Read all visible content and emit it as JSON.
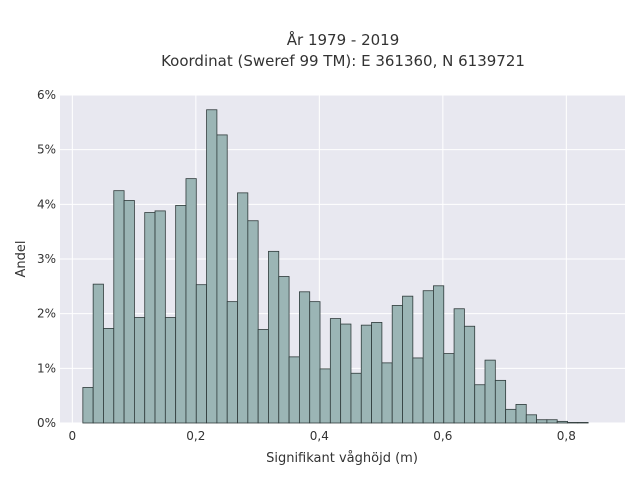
{
  "chart_data": {
    "type": "bar",
    "title_line1": "År 1979 - 2019",
    "title_line2": "Koordinat (Sweref 99 TM): E 361360, N 6139721",
    "xlabel": "Signifikant våghöjd (m)",
    "ylabel": "Andel",
    "xlim": [
      -0.02,
      0.895
    ],
    "ylim": [
      0,
      6
    ],
    "x_ticks": [
      0,
      0.2,
      0.4,
      0.6,
      0.8
    ],
    "x_tick_labels": [
      "0",
      "0,2",
      "0,4",
      "0,6",
      "0,8"
    ],
    "y_ticks": [
      0,
      1,
      2,
      3,
      4,
      5,
      6
    ],
    "y_tick_labels": [
      "0%",
      "1%",
      "2%",
      "3%",
      "4%",
      "5%",
      "6%"
    ],
    "grid": true,
    "bin_start": 0.017,
    "bin_width": 0.0167,
    "values": [
      0.65,
      2.54,
      1.73,
      4.25,
      4.07,
      1.93,
      3.85,
      3.88,
      1.93,
      3.98,
      4.47,
      2.53,
      5.73,
      5.27,
      2.22,
      4.21,
      3.7,
      1.71,
      3.14,
      2.68,
      1.21,
      2.4,
      2.22,
      0.99,
      1.91,
      1.81,
      0.91,
      1.79,
      1.84,
      1.1,
      2.15,
      2.32,
      1.19,
      2.42,
      2.51,
      1.27,
      2.09,
      1.77,
      0.7,
      1.15,
      0.78,
      0.25,
      0.34,
      0.15,
      0.06,
      0.06,
      0.03,
      0.01,
      0.01
    ],
    "colors": {
      "bar_fill": "#9bb5b5",
      "bar_stroke": "#2f3b3b",
      "plot_bg": "#e8e8f0",
      "grid": "#ffffff"
    }
  }
}
